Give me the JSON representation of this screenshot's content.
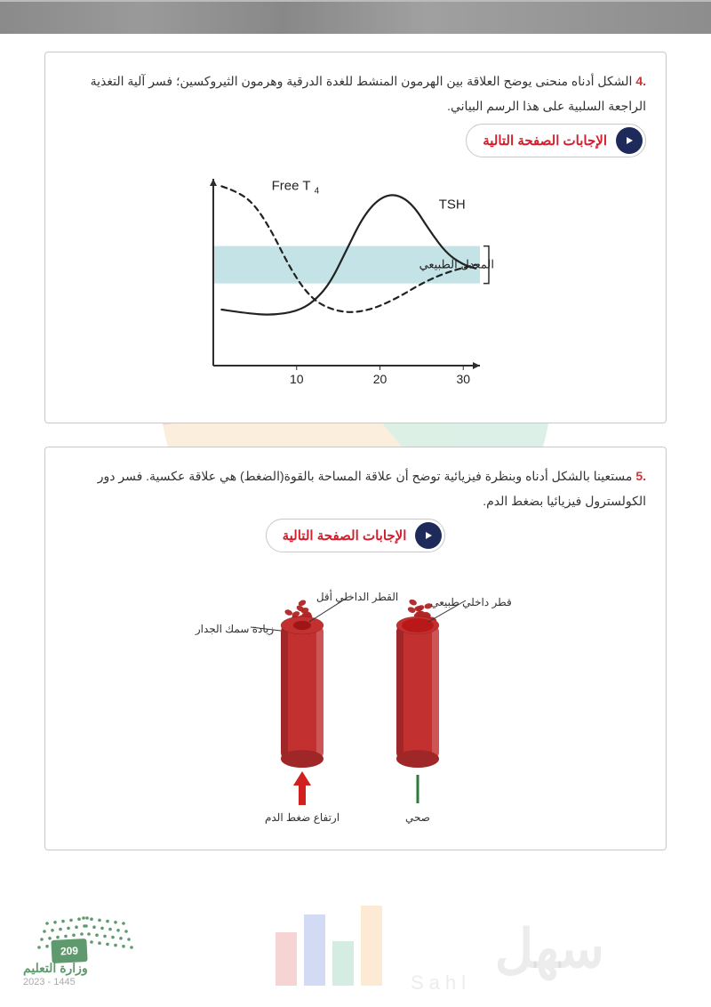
{
  "question4": {
    "number": ".4",
    "text": "الشكل أدناه منحنى يوضح العلاقة بين الهرمون المنشط للغدة الدرقية وهرمون الثيروكسين؛ فسر آلية التغذية الراجعة السلبية على هذا الرسم البياني.",
    "answer_label": "الإجابات الصفحة التالية",
    "chart": {
      "x_ticks": [
        10,
        20,
        30
      ],
      "x_range": [
        0,
        32
      ],
      "y_range": [
        0,
        100
      ],
      "band_y": [
        44,
        64
      ],
      "band_color": "#c3e3e6",
      "band_label": "المعدل الطبيعي",
      "axis_color": "#2d2d2d",
      "tsh_label": "TSH",
      "tsh_color": "#222222",
      "tsh_style": "solid",
      "tsh_points": [
        [
          1,
          30
        ],
        [
          4,
          28
        ],
        [
          7,
          27
        ],
        [
          10,
          29
        ],
        [
          12,
          34
        ],
        [
          14,
          44
        ],
        [
          16,
          62
        ],
        [
          18,
          80
        ],
        [
          20,
          90
        ],
        [
          22,
          92
        ],
        [
          24,
          86
        ],
        [
          26,
          72
        ],
        [
          28,
          60
        ],
        [
          30,
          54
        ],
        [
          31.5,
          52
        ]
      ],
      "ft4_label": "Free T₄",
      "ft4_color": "#222222",
      "ft4_style": "dashed",
      "ft4_points": [
        [
          1,
          96
        ],
        [
          3,
          93
        ],
        [
          5,
          86
        ],
        [
          7,
          72
        ],
        [
          9,
          54
        ],
        [
          11,
          40
        ],
        [
          13,
          32
        ],
        [
          16,
          28
        ],
        [
          19,
          30
        ],
        [
          22,
          36
        ],
        [
          25,
          44
        ],
        [
          28,
          50
        ],
        [
          31.5,
          54
        ]
      ]
    }
  },
  "question5": {
    "number": ".5",
    "text": "مستعينا بالشكل أدناه وبنظرة فيزيائية توضح أن علاقة المساحة بالقوة(الضغط) هي علاقة عكسية. فسر دور الكولسترول فيزيائيا بضغط الدم.",
    "answer_label": "الإجابات الصفحة التالية",
    "vessels": {
      "right": {
        "top_label": "قطر داخلي طبيعي",
        "bottom_label": "صحي",
        "inner_color": "#b81818",
        "outer_color": "#c33030",
        "wall": 6,
        "line_color": "#2d7a3a"
      },
      "left": {
        "top_label": "القطر الداخلي أقل",
        "side_label": "زيادة سمك الجدار",
        "bottom_label": "ارتفاع ضغط الدم",
        "inner_color": "#a01515",
        "outer_color": "#c33030",
        "wall": 14,
        "arrow_color": "#d02020"
      },
      "vessel_height": 150,
      "vessel_width": 48,
      "blood_cell_color": "#b02525"
    }
  },
  "footer": {
    "ministry": "وزارة التعليم",
    "date": "2023 - 1445",
    "page": "209",
    "dot_color": "#5f9a6e"
  },
  "watermark": {
    "text": "سهل",
    "sub": "Sahl"
  }
}
